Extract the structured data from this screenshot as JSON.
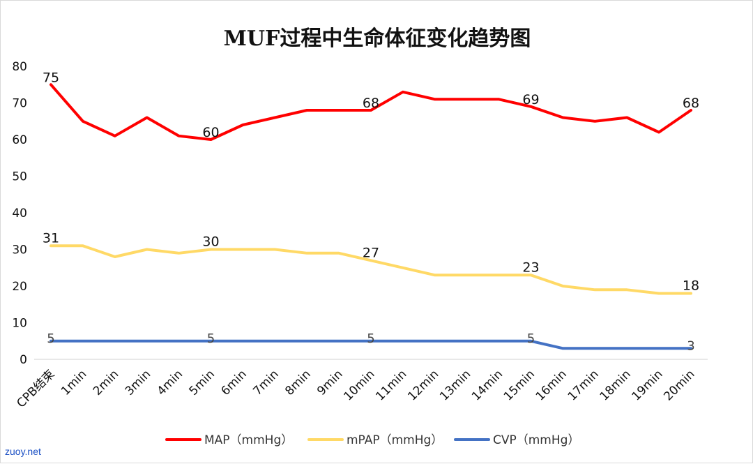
{
  "chart_data": {
    "type": "line",
    "title": "MUF过程中生命体征变化趋势图",
    "categories": [
      "CPB结束",
      "1min",
      "2min",
      "3min",
      "4min",
      "5min",
      "6min",
      "7min",
      "8min",
      "9min",
      "10min",
      "11min",
      "12min",
      "13min",
      "14min",
      "15min",
      "16min",
      "17min",
      "18min",
      "19min",
      "20min"
    ],
    "ylim": [
      0,
      80
    ],
    "yticks": [
      "0",
      "10",
      "20",
      "30",
      "40",
      "50",
      "60",
      "70",
      "80"
    ],
    "grid": false,
    "legend_position": "bottom",
    "series": [
      {
        "name": "MAP（mmHg）",
        "color": "#ff0000",
        "values": [
          75,
          65,
          61,
          66,
          61,
          60,
          64,
          66,
          68,
          68,
          68,
          73,
          71,
          71,
          71,
          69,
          66,
          65,
          66,
          62,
          68
        ],
        "labels": [
          {
            "index": 0,
            "text": "75"
          },
          {
            "index": 5,
            "text": "60"
          },
          {
            "index": 10,
            "text": "68"
          },
          {
            "index": 15,
            "text": "69"
          },
          {
            "index": 20,
            "text": "68"
          }
        ]
      },
      {
        "name": "mPAP（mmHg）",
        "color": "#ffd966",
        "values": [
          31,
          31,
          28,
          30,
          29,
          30,
          30,
          30,
          29,
          29,
          27,
          25,
          23,
          23,
          23,
          23,
          20,
          19,
          19,
          18,
          18
        ],
        "labels": [
          {
            "index": 0,
            "text": "31"
          },
          {
            "index": 5,
            "text": "30"
          },
          {
            "index": 10,
            "text": "27"
          },
          {
            "index": 15,
            "text": "23"
          },
          {
            "index": 20,
            "text": "18"
          }
        ]
      },
      {
        "name": "CVP（mmHg）",
        "color": "#4472c4",
        "values": [
          5,
          5,
          5,
          5,
          5,
          5,
          5,
          5,
          5,
          5,
          5,
          5,
          5,
          5,
          5,
          5,
          3,
          3,
          3,
          3,
          3
        ],
        "labels": [
          {
            "index": 0,
            "text": "5"
          },
          {
            "index": 5,
            "text": "5"
          },
          {
            "index": 10,
            "text": "5"
          },
          {
            "index": 15,
            "text": "5"
          },
          {
            "index": 20,
            "text": "3"
          }
        ]
      }
    ]
  },
  "watermark": "zuoy.net"
}
